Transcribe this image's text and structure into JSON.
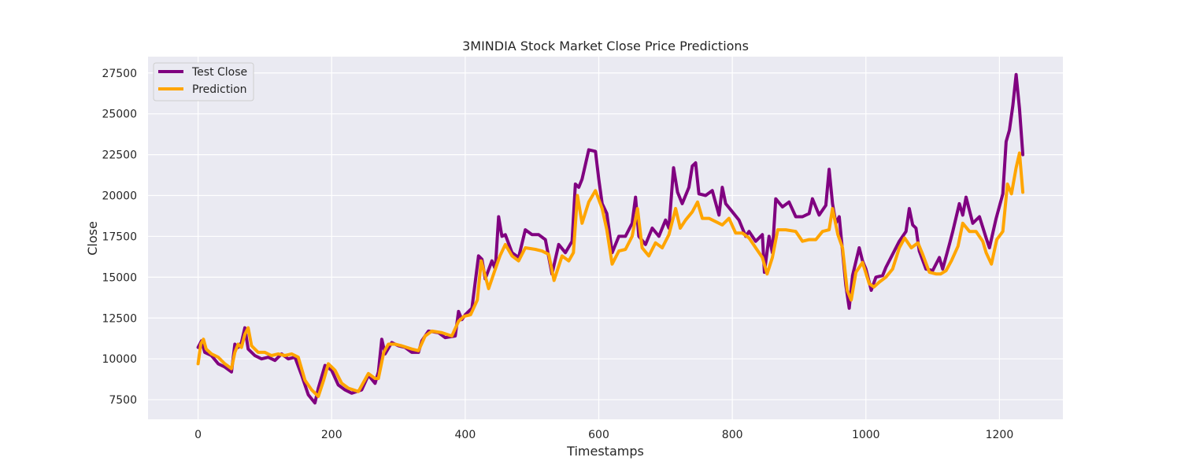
{
  "chart_data": {
    "type": "line",
    "title": "3MINDIA Stock Market Close Price Predictions",
    "xlabel": "Timestamps",
    "ylabel": "Close",
    "xlim": [
      -75,
      1295
    ],
    "ylim": [
      6300,
      28500
    ],
    "xticks": [
      0,
      200,
      400,
      600,
      800,
      1000,
      1200
    ],
    "yticks": [
      7500,
      10000,
      12500,
      15000,
      17500,
      20000,
      22500,
      25000,
      27500
    ],
    "grid": true,
    "legend_position": "top-left",
    "series": [
      {
        "name": "Test Close",
        "color": "#800080",
        "points": [
          [
            0,
            10700
          ],
          [
            5,
            11100
          ],
          [
            10,
            10400
          ],
          [
            20,
            10200
          ],
          [
            30,
            9700
          ],
          [
            40,
            9500
          ],
          [
            50,
            9200
          ],
          [
            55,
            10900
          ],
          [
            60,
            10700
          ],
          [
            65,
            11000
          ],
          [
            70,
            11900
          ],
          [
            75,
            10600
          ],
          [
            85,
            10200
          ],
          [
            95,
            10000
          ],
          [
            105,
            10100
          ],
          [
            115,
            9900
          ],
          [
            125,
            10300
          ],
          [
            135,
            10000
          ],
          [
            145,
            10100
          ],
          [
            155,
            9000
          ],
          [
            165,
            7800
          ],
          [
            175,
            7300
          ],
          [
            180,
            8200
          ],
          [
            190,
            9600
          ],
          [
            200,
            9300
          ],
          [
            210,
            8400
          ],
          [
            220,
            8100
          ],
          [
            230,
            7900
          ],
          [
            245,
            8100
          ],
          [
            255,
            9000
          ],
          [
            265,
            8500
          ],
          [
            270,
            9200
          ],
          [
            275,
            11200
          ],
          [
            280,
            10300
          ],
          [
            290,
            11000
          ],
          [
            300,
            10800
          ],
          [
            310,
            10700
          ],
          [
            320,
            10400
          ],
          [
            330,
            10400
          ],
          [
            335,
            11100
          ],
          [
            345,
            11700
          ],
          [
            360,
            11600
          ],
          [
            370,
            11300
          ],
          [
            385,
            11400
          ],
          [
            390,
            12900
          ],
          [
            395,
            12400
          ],
          [
            400,
            12700
          ],
          [
            410,
            13100
          ],
          [
            420,
            16300
          ],
          [
            425,
            16100
          ],
          [
            430,
            14900
          ],
          [
            440,
            16000
          ],
          [
            445,
            15500
          ],
          [
            450,
            18700
          ],
          [
            455,
            17500
          ],
          [
            460,
            17600
          ],
          [
            470,
            16500
          ],
          [
            480,
            16200
          ],
          [
            490,
            17900
          ],
          [
            500,
            17600
          ],
          [
            510,
            17600
          ],
          [
            520,
            17300
          ],
          [
            530,
            15200
          ],
          [
            540,
            17000
          ],
          [
            550,
            16500
          ],
          [
            560,
            17200
          ],
          [
            565,
            20700
          ],
          [
            570,
            20500
          ],
          [
            575,
            21000
          ],
          [
            585,
            22800
          ],
          [
            595,
            22700
          ],
          [
            600,
            21000
          ],
          [
            605,
            19500
          ],
          [
            612,
            18900
          ],
          [
            620,
            16500
          ],
          [
            630,
            17500
          ],
          [
            640,
            17500
          ],
          [
            650,
            18300
          ],
          [
            655,
            19900
          ],
          [
            660,
            17500
          ],
          [
            670,
            17000
          ],
          [
            680,
            18000
          ],
          [
            690,
            17500
          ],
          [
            700,
            18500
          ],
          [
            705,
            18000
          ],
          [
            712,
            21700
          ],
          [
            718,
            20200
          ],
          [
            725,
            19500
          ],
          [
            735,
            20500
          ],
          [
            740,
            21800
          ],
          [
            745,
            22000
          ],
          [
            750,
            20100
          ],
          [
            760,
            20000
          ],
          [
            770,
            20300
          ],
          [
            780,
            18800
          ],
          [
            785,
            20500
          ],
          [
            790,
            19500
          ],
          [
            800,
            19000
          ],
          [
            810,
            18500
          ],
          [
            820,
            17500
          ],
          [
            825,
            17800
          ],
          [
            835,
            17200
          ],
          [
            845,
            17600
          ],
          [
            848,
            15300
          ],
          [
            855,
            17500
          ],
          [
            860,
            16500
          ],
          [
            865,
            19800
          ],
          [
            875,
            19300
          ],
          [
            885,
            19600
          ],
          [
            895,
            18700
          ],
          [
            905,
            18700
          ],
          [
            915,
            18900
          ],
          [
            920,
            19800
          ],
          [
            930,
            18800
          ],
          [
            940,
            19400
          ],
          [
            945,
            21600
          ],
          [
            950,
            19500
          ],
          [
            955,
            18300
          ],
          [
            960,
            18700
          ],
          [
            965,
            16600
          ],
          [
            970,
            14500
          ],
          [
            975,
            13100
          ],
          [
            980,
            15100
          ],
          [
            990,
            16800
          ],
          [
            995,
            16000
          ],
          [
            1000,
            15500
          ],
          [
            1008,
            14200
          ],
          [
            1015,
            15000
          ],
          [
            1025,
            15100
          ],
          [
            1030,
            15600
          ],
          [
            1040,
            16400
          ],
          [
            1050,
            17200
          ],
          [
            1060,
            17800
          ],
          [
            1065,
            19200
          ],
          [
            1070,
            18200
          ],
          [
            1075,
            18000
          ],
          [
            1080,
            16600
          ],
          [
            1090,
            15500
          ],
          [
            1100,
            15400
          ],
          [
            1110,
            16200
          ],
          [
            1115,
            15500
          ],
          [
            1125,
            17000
          ],
          [
            1130,
            17800
          ],
          [
            1140,
            19500
          ],
          [
            1145,
            18800
          ],
          [
            1150,
            19900
          ],
          [
            1160,
            18300
          ],
          [
            1170,
            18700
          ],
          [
            1180,
            17400
          ],
          [
            1185,
            16800
          ],
          [
            1195,
            18600
          ],
          [
            1205,
            20100
          ],
          [
            1210,
            23300
          ],
          [
            1215,
            24000
          ],
          [
            1220,
            25500
          ],
          [
            1225,
            27400
          ],
          [
            1230,
            25300
          ],
          [
            1235,
            22500
          ]
        ]
      },
      {
        "name": "Prediction",
        "color": "#ffa500",
        "points": [
          [
            0,
            9700
          ],
          [
            4,
            10900
          ],
          [
            8,
            11200
          ],
          [
            12,
            10600
          ],
          [
            20,
            10300
          ],
          [
            30,
            10100
          ],
          [
            40,
            9700
          ],
          [
            50,
            9400
          ],
          [
            55,
            10400
          ],
          [
            60,
            10900
          ],
          [
            65,
            10700
          ],
          [
            70,
            11500
          ],
          [
            75,
            11900
          ],
          [
            80,
            10800
          ],
          [
            90,
            10400
          ],
          [
            100,
            10400
          ],
          [
            110,
            10200
          ],
          [
            120,
            10300
          ],
          [
            130,
            10200
          ],
          [
            140,
            10300
          ],
          [
            150,
            10100
          ],
          [
            160,
            8700
          ],
          [
            170,
            8100
          ],
          [
            180,
            7700
          ],
          [
            188,
            8700
          ],
          [
            195,
            9700
          ],
          [
            205,
            9300
          ],
          [
            215,
            8500
          ],
          [
            225,
            8200
          ],
          [
            240,
            8000
          ],
          [
            255,
            9100
          ],
          [
            265,
            8800
          ],
          [
            270,
            8800
          ],
          [
            278,
            10400
          ],
          [
            285,
            10900
          ],
          [
            295,
            10900
          ],
          [
            305,
            10800
          ],
          [
            320,
            10600
          ],
          [
            330,
            10500
          ],
          [
            340,
            11400
          ],
          [
            350,
            11700
          ],
          [
            365,
            11600
          ],
          [
            380,
            11400
          ],
          [
            390,
            12300
          ],
          [
            398,
            12600
          ],
          [
            408,
            12700
          ],
          [
            418,
            13600
          ],
          [
            424,
            16000
          ],
          [
            435,
            14300
          ],
          [
            445,
            15500
          ],
          [
            452,
            16300
          ],
          [
            460,
            17000
          ],
          [
            470,
            16300
          ],
          [
            480,
            16000
          ],
          [
            490,
            16800
          ],
          [
            505,
            16700
          ],
          [
            515,
            16600
          ],
          [
            525,
            16400
          ],
          [
            533,
            14800
          ],
          [
            545,
            16300
          ],
          [
            555,
            16000
          ],
          [
            562,
            16500
          ],
          [
            568,
            20000
          ],
          [
            575,
            18300
          ],
          [
            585,
            19600
          ],
          [
            595,
            20300
          ],
          [
            605,
            19200
          ],
          [
            612,
            17900
          ],
          [
            620,
            15800
          ],
          [
            630,
            16600
          ],
          [
            640,
            16700
          ],
          [
            650,
            17500
          ],
          [
            658,
            19200
          ],
          [
            665,
            16800
          ],
          [
            675,
            16300
          ],
          [
            685,
            17100
          ],
          [
            695,
            16800
          ],
          [
            705,
            17600
          ],
          [
            715,
            19200
          ],
          [
            722,
            18000
          ],
          [
            730,
            18500
          ],
          [
            740,
            19000
          ],
          [
            748,
            19600
          ],
          [
            755,
            18600
          ],
          [
            765,
            18600
          ],
          [
            775,
            18400
          ],
          [
            785,
            18200
          ],
          [
            795,
            18600
          ],
          [
            805,
            17700
          ],
          [
            815,
            17700
          ],
          [
            825,
            17400
          ],
          [
            835,
            16800
          ],
          [
            845,
            16200
          ],
          [
            852,
            15200
          ],
          [
            860,
            16200
          ],
          [
            868,
            17900
          ],
          [
            880,
            17900
          ],
          [
            895,
            17800
          ],
          [
            905,
            17200
          ],
          [
            915,
            17300
          ],
          [
            925,
            17300
          ],
          [
            935,
            17800
          ],
          [
            945,
            17900
          ],
          [
            950,
            19200
          ],
          [
            958,
            17600
          ],
          [
            965,
            16800
          ],
          [
            972,
            14200
          ],
          [
            978,
            13600
          ],
          [
            985,
            15300
          ],
          [
            995,
            15900
          ],
          [
            1005,
            14600
          ],
          [
            1012,
            14400
          ],
          [
            1020,
            14700
          ],
          [
            1030,
            15000
          ],
          [
            1040,
            15500
          ],
          [
            1050,
            16800
          ],
          [
            1058,
            17400
          ],
          [
            1068,
            16800
          ],
          [
            1078,
            17100
          ],
          [
            1085,
            16400
          ],
          [
            1095,
            15300
          ],
          [
            1105,
            15200
          ],
          [
            1112,
            15200
          ],
          [
            1120,
            15400
          ],
          [
            1128,
            16000
          ],
          [
            1138,
            16900
          ],
          [
            1145,
            18300
          ],
          [
            1155,
            17800
          ],
          [
            1165,
            17800
          ],
          [
            1175,
            17200
          ],
          [
            1180,
            16500
          ],
          [
            1188,
            15800
          ],
          [
            1196,
            17300
          ],
          [
            1205,
            17800
          ],
          [
            1212,
            20700
          ],
          [
            1218,
            20100
          ],
          [
            1225,
            21700
          ],
          [
            1230,
            22600
          ],
          [
            1235,
            20200
          ]
        ]
      }
    ]
  }
}
